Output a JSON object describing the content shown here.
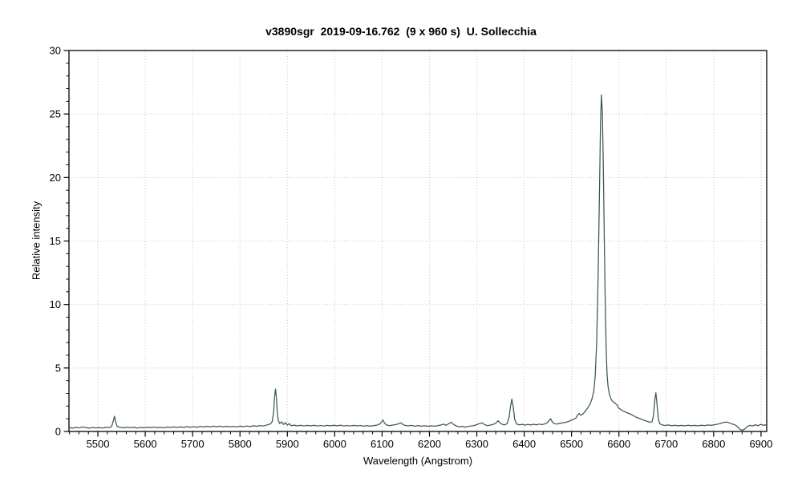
{
  "chart": {
    "title": "v3890sgr  2019-09-16.762  (9 x 960 s)  U. Sollecchia",
    "xlabel": "Wavelength (Angstrom)",
    "ylabel": "Relative intensity"
  },
  "chart_data": {
    "type": "line",
    "title": "v3890sgr  2019-09-16.762  (9 x 960 s)  U. Sollecchia",
    "xlabel": "Wavelength (Angstrom)",
    "ylabel": "Relative intensity",
    "xlim": [
      5439,
      6912
    ],
    "ylim": [
      0,
      30
    ],
    "x_major_ticks": [
      5500,
      5600,
      5700,
      5800,
      5900,
      6000,
      6100,
      6200,
      6300,
      6400,
      6500,
      6600,
      6700,
      6800,
      6900
    ],
    "x_minor_step": 20,
    "y_major_ticks": [
      0,
      5,
      10,
      15,
      20,
      25,
      30
    ],
    "y_minor_step": 1,
    "grid": "dotted at major ticks, both axes",
    "legend": "none",
    "line_color": "#3b5755",
    "grid_color": "#c3c3c3",
    "axis_color": "#000000",
    "notable_features": [
      {
        "wavelength": 5535,
        "intensity": 1.2,
        "note": "small emission peak"
      },
      {
        "wavelength": 5875,
        "intensity": 3.35,
        "note": "He I 5876 emission"
      },
      {
        "wavelength": 6102,
        "intensity": 0.9,
        "note": "weak bump"
      },
      {
        "wavelength": 6374,
        "intensity": 2.55,
        "note": "emission peak"
      },
      {
        "wavelength": 6456,
        "intensity": 1.0,
        "note": "weak peak"
      },
      {
        "wavelength": 6563,
        "intensity": 26.5,
        "note": "H-alpha, strongest peak with broad wings"
      },
      {
        "wavelength": 6678,
        "intensity": 3.05,
        "note": "He I 6678 emission"
      },
      {
        "wavelength": 6861,
        "intensity": 0.1,
        "note": "telluric absorption dip"
      }
    ],
    "series": [
      {
        "name": "spectrum",
        "points": [
          [
            5440,
            0.3
          ],
          [
            5447,
            0.26
          ],
          [
            5454,
            0.33
          ],
          [
            5461,
            0.28
          ],
          [
            5468,
            0.36
          ],
          [
            5475,
            0.3
          ],
          [
            5482,
            0.25
          ],
          [
            5489,
            0.32
          ],
          [
            5496,
            0.28
          ],
          [
            5503,
            0.31
          ],
          [
            5510,
            0.27
          ],
          [
            5517,
            0.33
          ],
          [
            5524,
            0.3
          ],
          [
            5529,
            0.4
          ],
          [
            5532,
            0.75
          ],
          [
            5535,
            1.2
          ],
          [
            5538,
            0.7
          ],
          [
            5541,
            0.38
          ],
          [
            5548,
            0.32
          ],
          [
            5555,
            0.28
          ],
          [
            5562,
            0.34
          ],
          [
            5569,
            0.29
          ],
          [
            5576,
            0.33
          ],
          [
            5583,
            0.27
          ],
          [
            5590,
            0.32
          ],
          [
            5597,
            0.29
          ],
          [
            5604,
            0.34
          ],
          [
            5611,
            0.3
          ],
          [
            5618,
            0.35
          ],
          [
            5625,
            0.29
          ],
          [
            5632,
            0.33
          ],
          [
            5639,
            0.28
          ],
          [
            5646,
            0.35
          ],
          [
            5653,
            0.31
          ],
          [
            5660,
            0.36
          ],
          [
            5667,
            0.31
          ],
          [
            5674,
            0.36
          ],
          [
            5681,
            0.32
          ],
          [
            5688,
            0.38
          ],
          [
            5695,
            0.33
          ],
          [
            5702,
            0.37
          ],
          [
            5709,
            0.33
          ],
          [
            5716,
            0.4
          ],
          [
            5723,
            0.35
          ],
          [
            5730,
            0.41
          ],
          [
            5737,
            0.36
          ],
          [
            5744,
            0.42
          ],
          [
            5751,
            0.37
          ],
          [
            5758,
            0.42
          ],
          [
            5765,
            0.36
          ],
          [
            5772,
            0.41
          ],
          [
            5779,
            0.36
          ],
          [
            5786,
            0.4
          ],
          [
            5793,
            0.36
          ],
          [
            5800,
            0.42
          ],
          [
            5807,
            0.38
          ],
          [
            5814,
            0.43
          ],
          [
            5821,
            0.39
          ],
          [
            5828,
            0.45
          ],
          [
            5835,
            0.41
          ],
          [
            5842,
            0.46
          ],
          [
            5849,
            0.43
          ],
          [
            5856,
            0.5
          ],
          [
            5861,
            0.55
          ],
          [
            5865,
            0.62
          ],
          [
            5868,
            0.78
          ],
          [
            5871,
            1.5
          ],
          [
            5873,
            2.7
          ],
          [
            5875,
            3.35
          ],
          [
            5877,
            2.6
          ],
          [
            5879,
            1.4
          ],
          [
            5881,
            0.85
          ],
          [
            5884,
            0.62
          ],
          [
            5888,
            0.76
          ],
          [
            5892,
            0.55
          ],
          [
            5896,
            0.7
          ],
          [
            5900,
            0.5
          ],
          [
            5904,
            0.62
          ],
          [
            5908,
            0.46
          ],
          [
            5914,
            0.5
          ],
          [
            5921,
            0.44
          ],
          [
            5928,
            0.49
          ],
          [
            5935,
            0.43
          ],
          [
            5942,
            0.48
          ],
          [
            5949,
            0.44
          ],
          [
            5956,
            0.49
          ],
          [
            5963,
            0.43
          ],
          [
            5970,
            0.47
          ],
          [
            5977,
            0.43
          ],
          [
            5984,
            0.48
          ],
          [
            5991,
            0.44
          ],
          [
            5998,
            0.49
          ],
          [
            6005,
            0.45
          ],
          [
            6012,
            0.49
          ],
          [
            6019,
            0.43
          ],
          [
            6026,
            0.47
          ],
          [
            6033,
            0.43
          ],
          [
            6040,
            0.48
          ],
          [
            6047,
            0.44
          ],
          [
            6054,
            0.47
          ],
          [
            6061,
            0.42
          ],
          [
            6068,
            0.46
          ],
          [
            6075,
            0.42
          ],
          [
            6082,
            0.46
          ],
          [
            6089,
            0.5
          ],
          [
            6095,
            0.58
          ],
          [
            6099,
            0.75
          ],
          [
            6102,
            0.9
          ],
          [
            6105,
            0.68
          ],
          [
            6109,
            0.52
          ],
          [
            6115,
            0.46
          ],
          [
            6121,
            0.5
          ],
          [
            6127,
            0.53
          ],
          [
            6133,
            0.58
          ],
          [
            6139,
            0.68
          ],
          [
            6143,
            0.58
          ],
          [
            6148,
            0.48
          ],
          [
            6155,
            0.44
          ],
          [
            6162,
            0.48
          ],
          [
            6169,
            0.42
          ],
          [
            6176,
            0.46
          ],
          [
            6183,
            0.42
          ],
          [
            6190,
            0.45
          ],
          [
            6197,
            0.41
          ],
          [
            6204,
            0.44
          ],
          [
            6211,
            0.41
          ],
          [
            6218,
            0.46
          ],
          [
            6225,
            0.52
          ],
          [
            6230,
            0.58
          ],
          [
            6235,
            0.48
          ],
          [
            6241,
            0.62
          ],
          [
            6246,
            0.72
          ],
          [
            6251,
            0.55
          ],
          [
            6257,
            0.43
          ],
          [
            6263,
            0.37
          ],
          [
            6269,
            0.4
          ],
          [
            6275,
            0.35
          ],
          [
            6281,
            0.39
          ],
          [
            6287,
            0.43
          ],
          [
            6293,
            0.46
          ],
          [
            6299,
            0.52
          ],
          [
            6305,
            0.62
          ],
          [
            6311,
            0.68
          ],
          [
            6316,
            0.55
          ],
          [
            6322,
            0.46
          ],
          [
            6328,
            0.5
          ],
          [
            6334,
            0.55
          ],
          [
            6340,
            0.65
          ],
          [
            6345,
            0.85
          ],
          [
            6349,
            0.68
          ],
          [
            6354,
            0.55
          ],
          [
            6359,
            0.52
          ],
          [
            6364,
            0.62
          ],
          [
            6368,
            1.1
          ],
          [
            6371,
            1.95
          ],
          [
            6374,
            2.55
          ],
          [
            6377,
            1.9
          ],
          [
            6380,
            0.95
          ],
          [
            6384,
            0.58
          ],
          [
            6390,
            0.52
          ],
          [
            6396,
            0.56
          ],
          [
            6402,
            0.5
          ],
          [
            6408,
            0.56
          ],
          [
            6414,
            0.51
          ],
          [
            6420,
            0.57
          ],
          [
            6426,
            0.52
          ],
          [
            6432,
            0.58
          ],
          [
            6438,
            0.54
          ],
          [
            6444,
            0.6
          ],
          [
            6449,
            0.7
          ],
          [
            6453,
            0.88
          ],
          [
            6456,
            1.0
          ],
          [
            6459,
            0.78
          ],
          [
            6463,
            0.62
          ],
          [
            6469,
            0.58
          ],
          [
            6475,
            0.64
          ],
          [
            6481,
            0.68
          ],
          [
            6487,
            0.72
          ],
          [
            6493,
            0.78
          ],
          [
            6499,
            0.88
          ],
          [
            6504,
            0.95
          ],
          [
            6509,
            1.05
          ],
          [
            6513,
            1.3
          ],
          [
            6516,
            1.42
          ],
          [
            6519,
            1.28
          ],
          [
            6523,
            1.35
          ],
          [
            6527,
            1.5
          ],
          [
            6531,
            1.7
          ],
          [
            6535,
            1.9
          ],
          [
            6539,
            2.15
          ],
          [
            6543,
            2.55
          ],
          [
            6547,
            3.2
          ],
          [
            6550,
            4.4
          ],
          [
            6553,
            7.0
          ],
          [
            6556,
            12.0
          ],
          [
            6559,
            19.0
          ],
          [
            6561,
            24.0
          ],
          [
            6563,
            26.5
          ],
          [
            6565,
            25.2
          ],
          [
            6567,
            21.0
          ],
          [
            6569,
            15.5
          ],
          [
            6571,
            10.5
          ],
          [
            6573,
            6.6
          ],
          [
            6575,
            4.5
          ],
          [
            6577,
            3.55
          ],
          [
            6580,
            2.9
          ],
          [
            6584,
            2.5
          ],
          [
            6588,
            2.32
          ],
          [
            6592,
            2.22
          ],
          [
            6596,
            2.08
          ],
          [
            6600,
            1.82
          ],
          [
            6606,
            1.68
          ],
          [
            6612,
            1.56
          ],
          [
            6618,
            1.46
          ],
          [
            6624,
            1.38
          ],
          [
            6630,
            1.26
          ],
          [
            6636,
            1.13
          ],
          [
            6642,
            1.05
          ],
          [
            6648,
            0.95
          ],
          [
            6654,
            0.87
          ],
          [
            6660,
            0.79
          ],
          [
            6666,
            0.72
          ],
          [
            6670,
            0.78
          ],
          [
            6673,
            1.25
          ],
          [
            6676,
            2.55
          ],
          [
            6678,
            3.05
          ],
          [
            6680,
            2.3
          ],
          [
            6683,
            1.05
          ],
          [
            6686,
            0.62
          ],
          [
            6691,
            0.52
          ],
          [
            6697,
            0.47
          ],
          [
            6704,
            0.51
          ],
          [
            6711,
            0.45
          ],
          [
            6718,
            0.49
          ],
          [
            6725,
            0.44
          ],
          [
            6732,
            0.48
          ],
          [
            6739,
            0.44
          ],
          [
            6746,
            0.49
          ],
          [
            6753,
            0.45
          ],
          [
            6760,
            0.48
          ],
          [
            6767,
            0.44
          ],
          [
            6774,
            0.49
          ],
          [
            6781,
            0.46
          ],
          [
            6788,
            0.51
          ],
          [
            6795,
            0.48
          ],
          [
            6802,
            0.53
          ],
          [
            6809,
            0.58
          ],
          [
            6816,
            0.65
          ],
          [
            6822,
            0.72
          ],
          [
            6828,
            0.74
          ],
          [
            6834,
            0.66
          ],
          [
            6840,
            0.58
          ],
          [
            6846,
            0.5
          ],
          [
            6851,
            0.35
          ],
          [
            6856,
            0.15
          ],
          [
            6861,
            0.1
          ],
          [
            6866,
            0.2
          ],
          [
            6871,
            0.38
          ],
          [
            6876,
            0.48
          ],
          [
            6882,
            0.44
          ],
          [
            6888,
            0.52
          ],
          [
            6894,
            0.46
          ],
          [
            6900,
            0.56
          ],
          [
            6905,
            0.48
          ],
          [
            6910,
            0.52
          ]
        ]
      }
    ]
  }
}
